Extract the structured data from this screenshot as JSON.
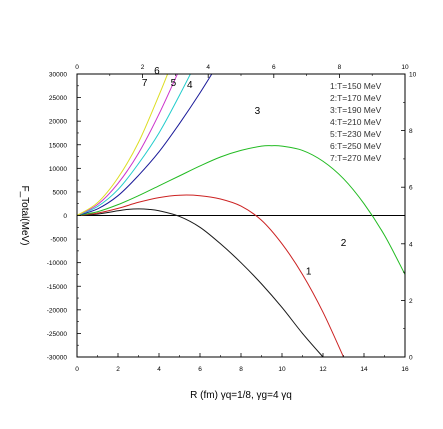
{
  "chart_data": {
    "type": "line",
    "xlabel": "R (fm)  γq=1/8,  γg=4 γq",
    "ylabel": "F_Total(MeV)",
    "x_bottom": {
      "range": [
        0,
        16
      ],
      "ticks": [
        "0",
        "2",
        "4",
        "6",
        "8",
        "10",
        "12",
        "14",
        "16"
      ]
    },
    "x_top": {
      "range": [
        0,
        10
      ],
      "ticks": [
        "0",
        "2",
        "4",
        "6",
        "8",
        "10"
      ]
    },
    "y_left": {
      "range": [
        -30000,
        30000
      ],
      "ticks": [
        "30000",
        "25000",
        "20000",
        "15000",
        "10000",
        "5000",
        "0",
        "-5000",
        "-10000",
        "-15000",
        "-20000",
        "-25000",
        "-30000"
      ]
    },
    "y_right": {
      "range": [
        0,
        10
      ],
      "ticks": [
        "0",
        "2",
        "4",
        "6",
        "8",
        "10"
      ]
    },
    "zero_line": true,
    "legend": {
      "position": "top-right",
      "entries": [
        "1:T=150 MeV",
        "2:T=170 MeV",
        "3:T=190 MeV",
        "4:T=210 MeV",
        "5:T=230 MeV",
        "6:T=250 MeV",
        "7:T=270 MeV"
      ]
    },
    "series": [
      {
        "label": "1",
        "color": "#1a1a1a",
        "label_at": [
          11.3,
          -12500
        ],
        "x": [
          0,
          1,
          2,
          2.5,
          3,
          3.5,
          4,
          5,
          6,
          7,
          8,
          9,
          10,
          11,
          12
        ],
        "y": [
          0,
          300,
          1000,
          1300,
          1400,
          1300,
          1000,
          -200,
          -2500,
          -6000,
          -10000,
          -14500,
          -19500,
          -25000,
          -30000
        ]
      },
      {
        "label": "2",
        "color": "#cc2222",
        "label_at": [
          13.0,
          -6500
        ],
        "x": [
          0,
          1,
          2,
          3,
          4,
          5,
          6,
          7,
          8,
          9,
          10,
          11,
          12,
          13
        ],
        "y": [
          0,
          500,
          1500,
          2800,
          3800,
          4300,
          4200,
          3500,
          2000,
          -1000,
          -6000,
          -12500,
          -20500,
          -30000
        ]
      },
      {
        "label": "3",
        "color": "#22bb22",
        "label_at": [
          8.8,
          21500
        ],
        "x": [
          0,
          1,
          2,
          3,
          4,
          5,
          6,
          7,
          8,
          9,
          9.5,
          10,
          11,
          12,
          13,
          14,
          15,
          16
        ],
        "y": [
          0,
          800,
          2300,
          4200,
          6300,
          8400,
          10500,
          12400,
          13800,
          14700,
          14800,
          14700,
          13800,
          11500,
          7800,
          2500,
          -4200,
          -12500
        ]
      },
      {
        "label": "4",
        "color": "#1a1a99",
        "label_at": [
          5.5,
          27000
        ],
        "x": [
          0,
          1,
          2,
          3,
          4,
          5,
          6,
          7
        ],
        "y": [
          0,
          1400,
          4200,
          8500,
          13500,
          19500,
          26000,
          33000
        ]
      },
      {
        "label": "5",
        "color": "#22cccc",
        "label_at": [
          4.7,
          27500
        ],
        "x": [
          0,
          1,
          2,
          3,
          4,
          5,
          6
        ],
        "y": [
          0,
          1900,
          5500,
          11000,
          17500,
          25500,
          34000
        ]
      },
      {
        "label": "6",
        "color": "#cc33cc",
        "label_at": [
          3.9,
          30000
        ],
        "x": [
          0,
          1,
          2,
          3,
          4,
          5,
          5.5
        ],
        "y": [
          0,
          2300,
          6800,
          13200,
          21500,
          31000,
          36000
        ]
      },
      {
        "label": "7",
        "color": "#dddd22",
        "label_at": [
          3.3,
          27500
        ],
        "x": [
          0,
          1,
          2,
          3,
          4,
          4.6
        ],
        "y": [
          0,
          2700,
          8000,
          15500,
          25500,
          32000
        ]
      }
    ]
  }
}
